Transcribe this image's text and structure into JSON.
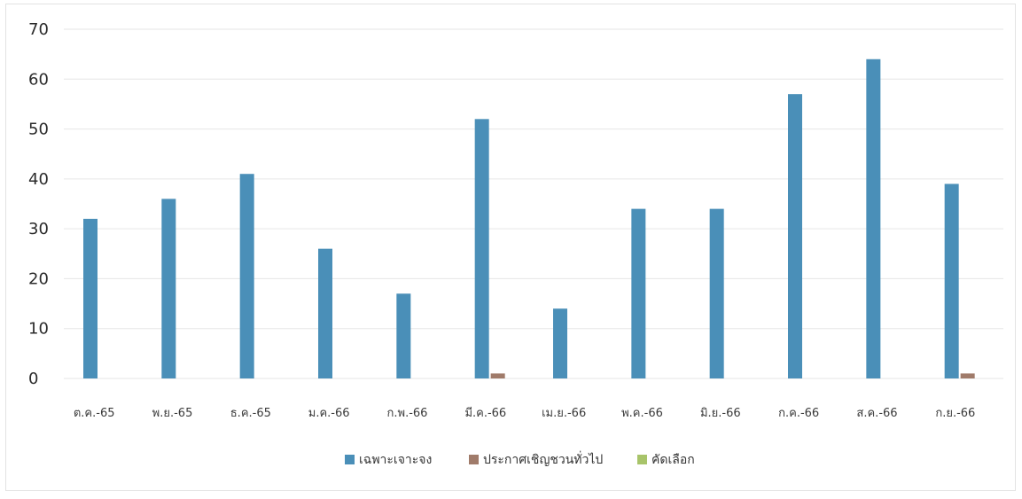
{
  "chart_data": {
    "type": "bar",
    "categories": [
      "ต.ค.-65",
      "พ.ย.-65",
      "ธ.ค.-65",
      "ม.ค.-66",
      "ก.พ.-66",
      "มี.ค.-66",
      "เม.ย.-66",
      "พ.ค.-66",
      "มิ.ย.-66",
      "ก.ค.-66",
      "ส.ค.-66",
      "ก.ย.-66"
    ],
    "series": [
      {
        "name": "เฉพาะเจาะจง",
        "color": "#4a8fb8",
        "values": [
          32,
          36,
          41,
          26,
          17,
          52,
          14,
          34,
          34,
          57,
          64,
          39
        ]
      },
      {
        "name": "ประกาศเชิญชวนทั่วไป",
        "color": "#a07b6a",
        "values": [
          0,
          0,
          0,
          0,
          0,
          1,
          0,
          0,
          0,
          0,
          0,
          1
        ]
      },
      {
        "name": "คัดเลือก",
        "color": "#a8c46a",
        "values": [
          0,
          0,
          0,
          0,
          0,
          0,
          0,
          0,
          0,
          0,
          0,
          0
        ]
      }
    ],
    "yticks": [
      "0",
      "10",
      "20",
      "30",
      "40",
      "50",
      "60",
      "70"
    ],
    "ylim": [
      0,
      70
    ],
    "grid": true,
    "legend_position": "bottom"
  }
}
